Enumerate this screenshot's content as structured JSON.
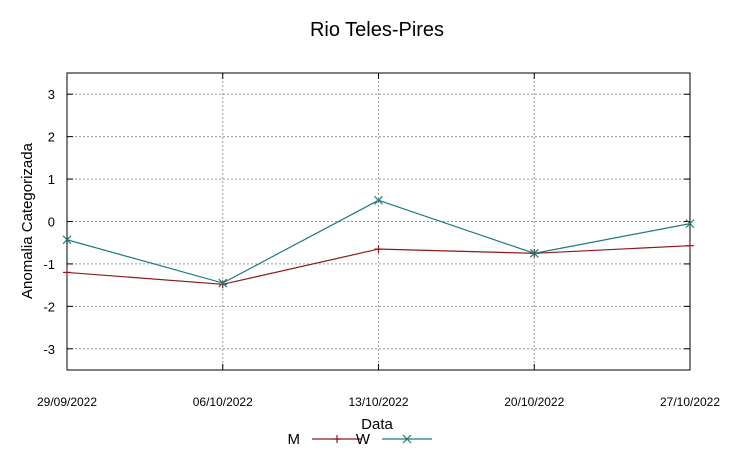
{
  "chart_data": {
    "type": "line",
    "title": "Rio Teles-Pires",
    "xlabel": "Data",
    "ylabel": "Anomalia Categorizada",
    "categories": [
      "29/09/2022",
      "06/10/2022",
      "13/10/2022",
      "20/10/2022",
      "27/10/2022"
    ],
    "ylim": [
      -3.5,
      3.5
    ],
    "yticks": [
      -3,
      -2,
      -1,
      0,
      1,
      2,
      3
    ],
    "grid": true,
    "legend_position": "bottom",
    "series": [
      {
        "name": "M",
        "values": [
          -1.2,
          -1.48,
          -0.65,
          -0.75,
          -0.57
        ],
        "color": "#8b1a1a",
        "marker": "plus"
      },
      {
        "name": "W",
        "values": [
          -0.43,
          -1.45,
          0.5,
          -0.75,
          -0.05
        ],
        "color": "#1f7a7a",
        "marker": "cross"
      }
    ]
  }
}
